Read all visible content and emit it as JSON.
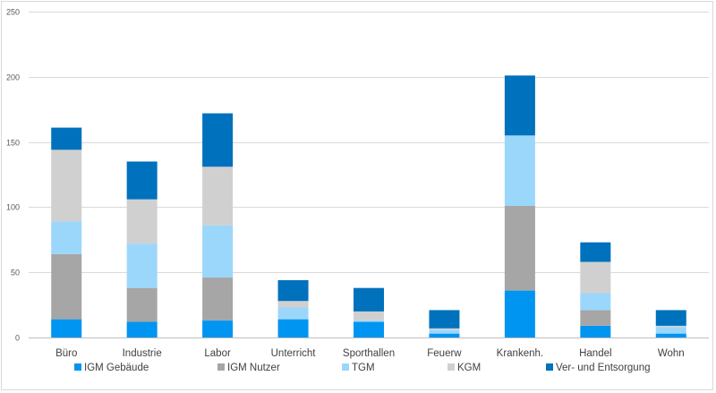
{
  "chart_data": {
    "type": "bar",
    "stacked": true,
    "categories": [
      "Büro",
      "Industrie",
      "Labor",
      "Unterricht",
      "Sporthallen",
      "Feuerw",
      "Krankenh.",
      "Handel",
      "Wohn"
    ],
    "series": [
      {
        "name": "IGM Gebäude",
        "color": "#0095f0",
        "values": [
          14,
          12,
          13,
          14,
          12,
          3,
          36,
          9,
          3
        ]
      },
      {
        "name": "IGM Nutzer",
        "color": "#a6a6a6",
        "values": [
          50,
          26,
          33,
          0,
          0,
          0,
          65,
          12,
          0
        ]
      },
      {
        "name": "TGM",
        "color": "#9bd7fb",
        "values": [
          25,
          34,
          40,
          9,
          1,
          3,
          54,
          13,
          5
        ]
      },
      {
        "name": "KGM",
        "color": "#d0d0d0",
        "values": [
          55,
          34,
          45,
          5,
          7,
          1,
          0,
          24,
          1
        ]
      },
      {
        "name": "Ver- und Entsorgung",
        "color": "#0071bc",
        "values": [
          17,
          29,
          41,
          16,
          18,
          14,
          46,
          15,
          12
        ]
      }
    ],
    "ylim": [
      0,
      250
    ],
    "yticks": [
      "0",
      "50",
      "100",
      "150",
      "200",
      "250"
    ],
    "grid": true,
    "legend_position": "bottom"
  }
}
